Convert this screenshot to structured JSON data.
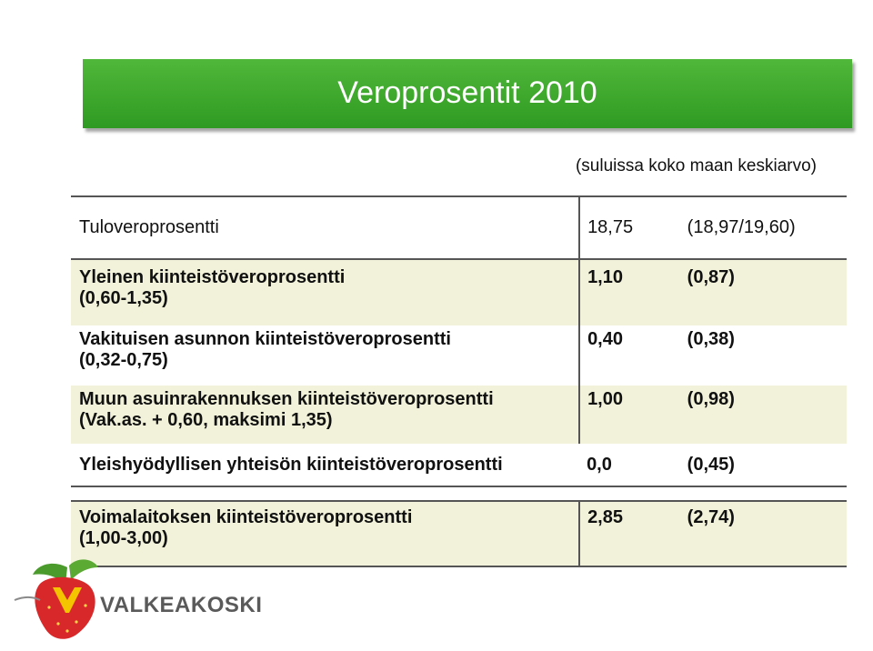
{
  "title": "Veroprosentit 2010",
  "subtitle": "(suluissa koko maan keskiarvo)",
  "rows": [
    {
      "label_line1": "Tuloveroprosentti",
      "label_line2": "",
      "value": "18,75",
      "average": "(18,97/19,60)"
    },
    {
      "label_line1": "Yleinen kiinteistöveroprosentti",
      "label_line2": "(0,60-1,35)",
      "value": "1,10",
      "average": "(0,87)"
    },
    {
      "label_line1": "Vakituisen asunnon kiinteistöveroprosentti",
      "label_line2": "(0,32-0,75)",
      "value": "0,40",
      "average": "(0,38)"
    },
    {
      "label_line1": "Muun asuinrakennuksen kiinteistöveroprosentti",
      "label_line2": "(Vak.as. + 0,60, maksimi 1,35)",
      "value": "1,00",
      "average": "(0,98)"
    },
    {
      "label_line1": "Yleishyödyllisen yhteisön kiinteistöveroprosentti",
      "label_line2": "",
      "value": "0,0",
      "average": "(0,45)"
    },
    {
      "label_line1": "Voimalaitoksen kiinteistöveroprosentti",
      "label_line2": "(1,00-3,00)",
      "value": "2,85",
      "average": "(2,74)"
    }
  ],
  "logo": {
    "text": "VALKEAKOSKI",
    "icon": "strawberry-crest-icon"
  },
  "colors": {
    "banner": "#3aa82a",
    "row_shade": "#f1f2d9",
    "logo_text": "#5a5a5a"
  }
}
